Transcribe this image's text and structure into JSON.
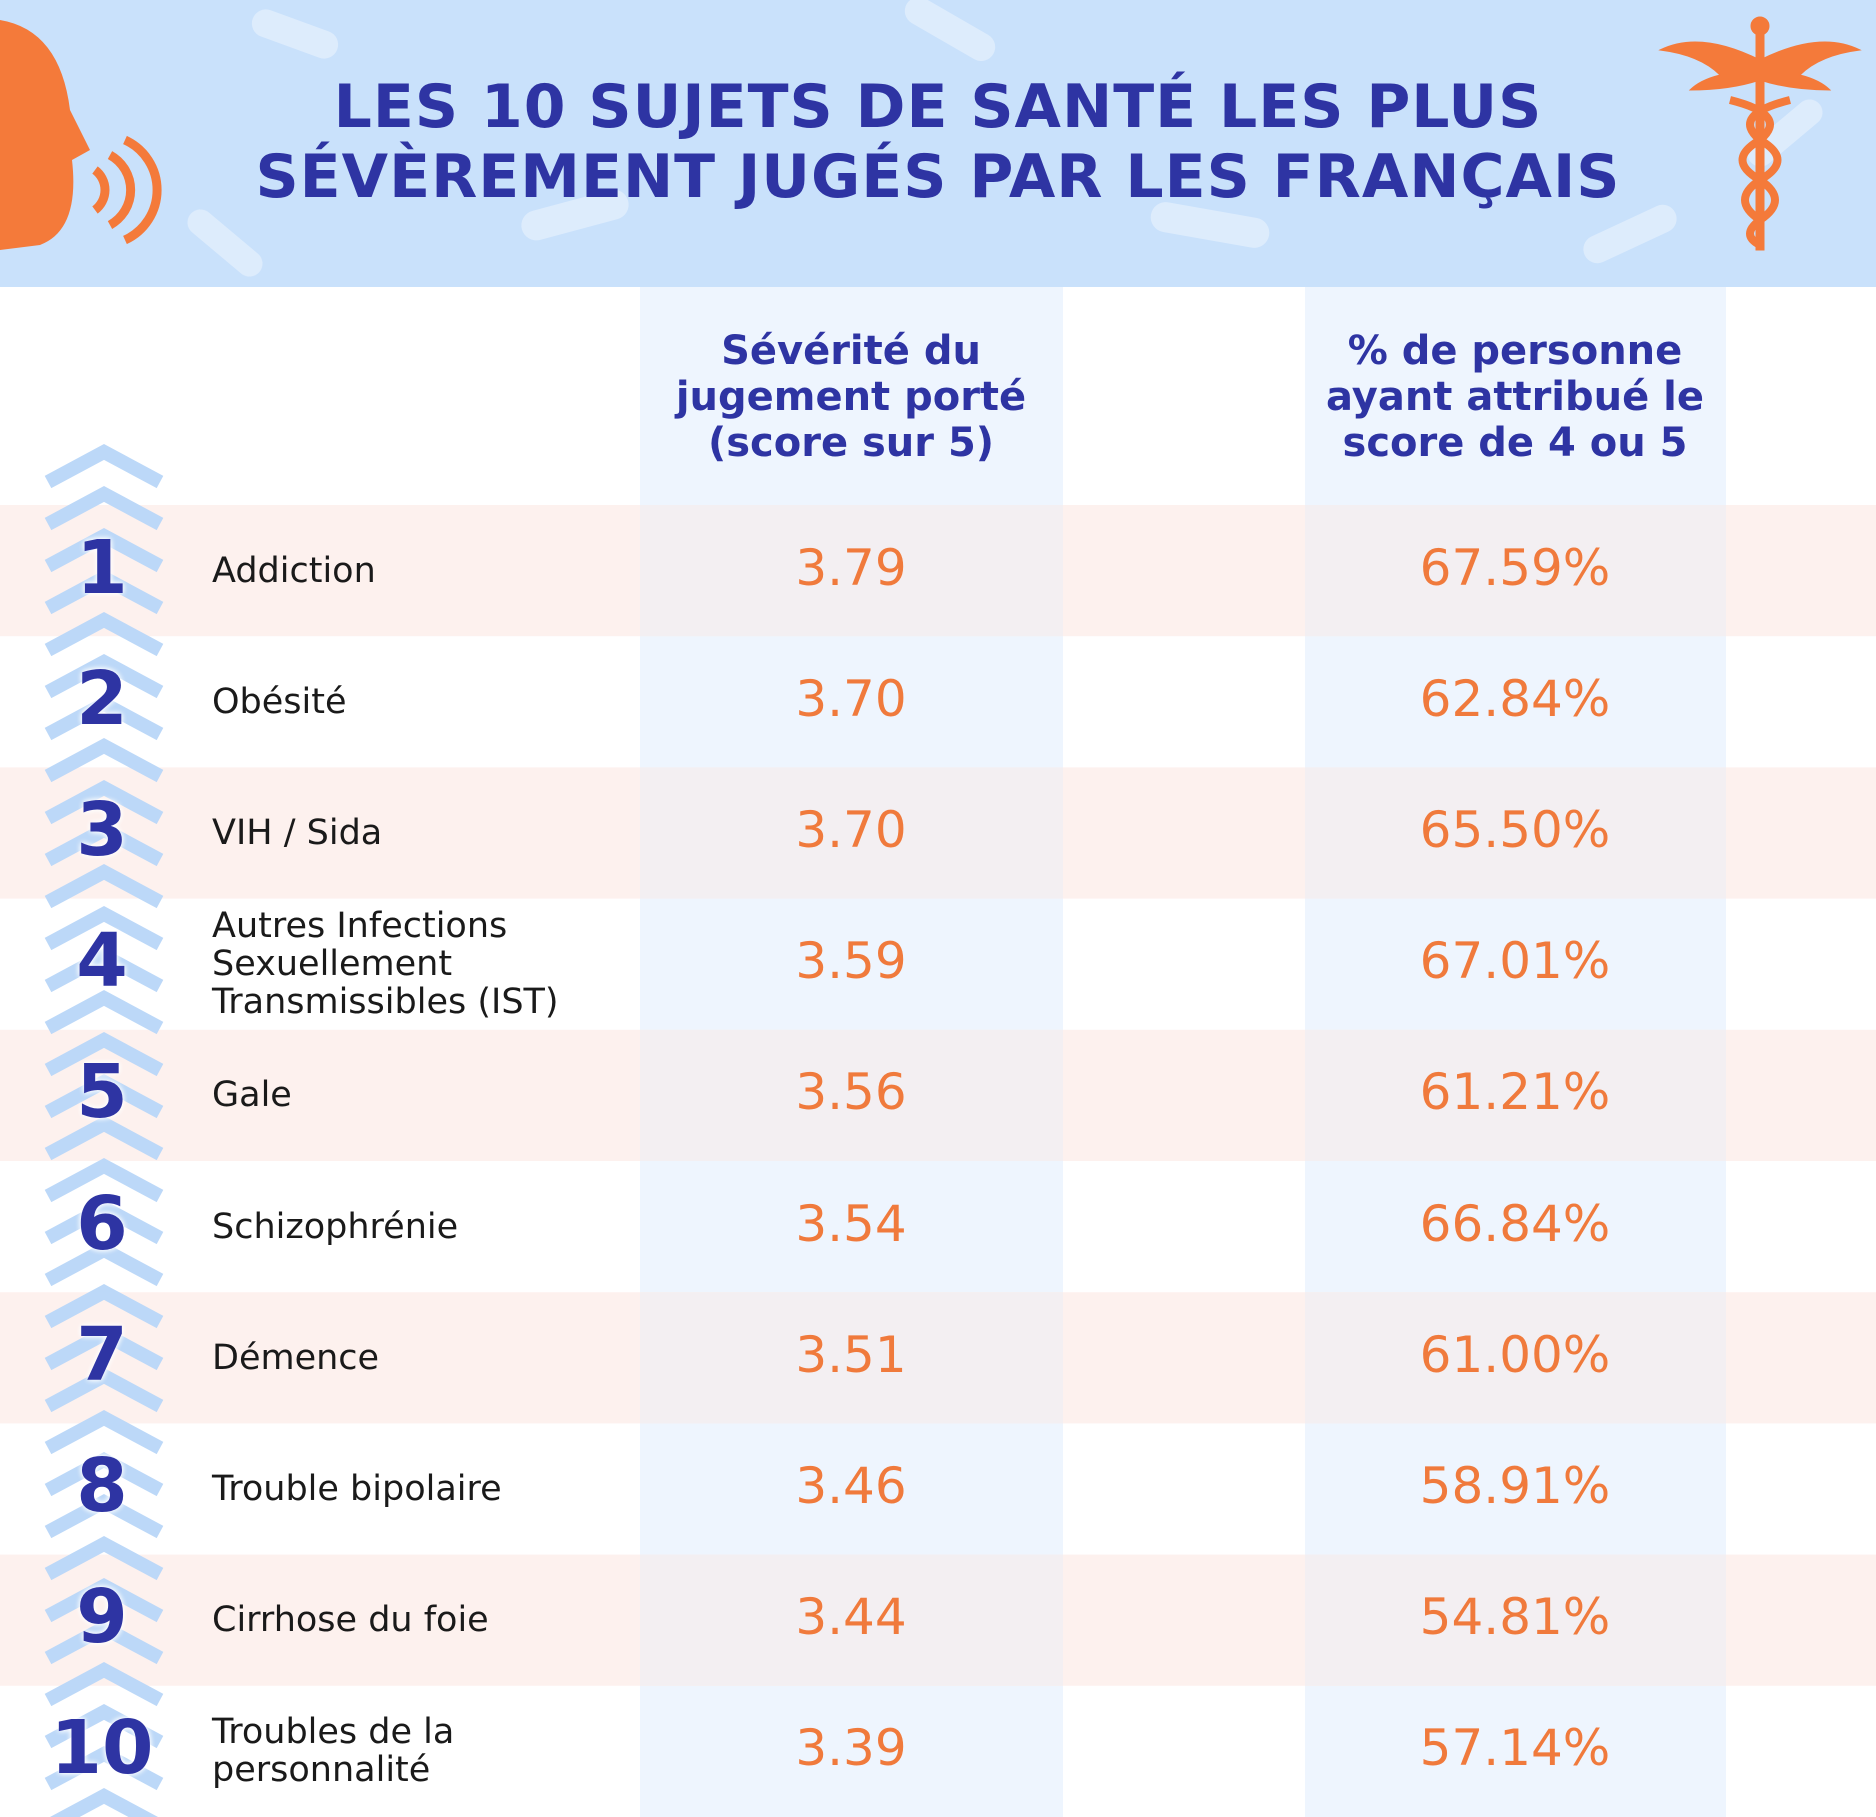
{
  "header": {
    "title_lines": [
      "LES 10 SUJETS DE SANTÉ LES PLUS",
      "SÉVÈREMENT JUGÉS PAR LES FRANÇAIS"
    ]
  },
  "table": {
    "columns": [
      "Sévérité du jugement porté (score sur 5)",
      "% de personne ayant attribué le score de 4 ou 5"
    ],
    "rows": [
      {
        "rank": "1",
        "name": "Addiction",
        "score": "3.79",
        "pct": "67.59%"
      },
      {
        "rank": "2",
        "name": "Obésité",
        "score": "3.70",
        "pct": "62.84%"
      },
      {
        "rank": "3",
        "name": "VIH / Sida",
        "score": "3.70",
        "pct": "65.50%"
      },
      {
        "rank": "4",
        "name": "Autres Infections Sexuellement Transmissibles (IST)",
        "score": "3.59",
        "pct": "67.01%"
      },
      {
        "rank": "5",
        "name": "Gale",
        "score": "3.56",
        "pct": "61.21%"
      },
      {
        "rank": "6",
        "name": "Schizophrénie",
        "score": "3.54",
        "pct": "66.84%"
      },
      {
        "rank": "7",
        "name": "Démence",
        "score": "3.51",
        "pct": "61.00%"
      },
      {
        "rank": "8",
        "name": "Trouble bipolaire",
        "score": "3.46",
        "pct": "58.91%"
      },
      {
        "rank": "9",
        "name": "Cirrhose du foie",
        "score": "3.44",
        "pct": "54.81%"
      },
      {
        "rank": "10",
        "name": "Troubles de la personnalité",
        "score": "3.39",
        "pct": "57.14%"
      }
    ]
  }
}
